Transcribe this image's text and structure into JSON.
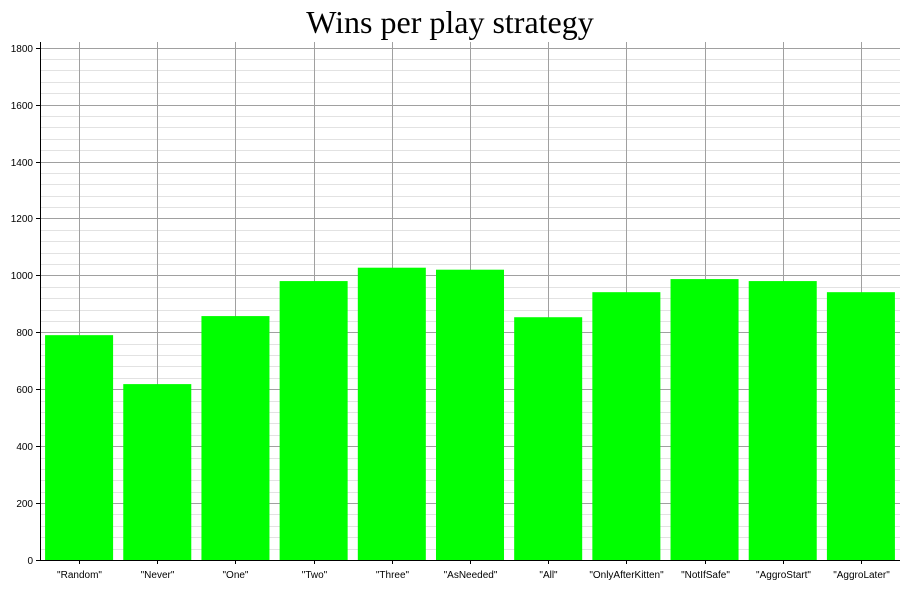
{
  "chart_data": {
    "type": "bar",
    "title": "Wins per play strategy",
    "xlabel": "",
    "ylabel": "",
    "categories": [
      "\"Random\"",
      "\"Never\"",
      "\"One\"",
      "\"Two\"",
      "\"Three\"",
      "\"AsNeeded\"",
      "\"All\"",
      "\"OnlyAfterKitten\"",
      "\"NotIfSafe\"",
      "\"AggroStart\"",
      "\"AggroLater\""
    ],
    "values": [
      790,
      618,
      857,
      980,
      1027,
      1020,
      853,
      941,
      987,
      980,
      941
    ],
    "ylim": [
      0,
      1820
    ],
    "yticks": [
      0,
      200,
      400,
      600,
      800,
      1000,
      1200,
      1400,
      1600,
      1800
    ],
    "minor_grid_step": 40,
    "grid": true,
    "legend": "none",
    "colors": {
      "bar": "#00ff00",
      "major_grid": "#a0a0a0",
      "minor_grid": "#e2e2e2",
      "axis": "#000000"
    }
  }
}
